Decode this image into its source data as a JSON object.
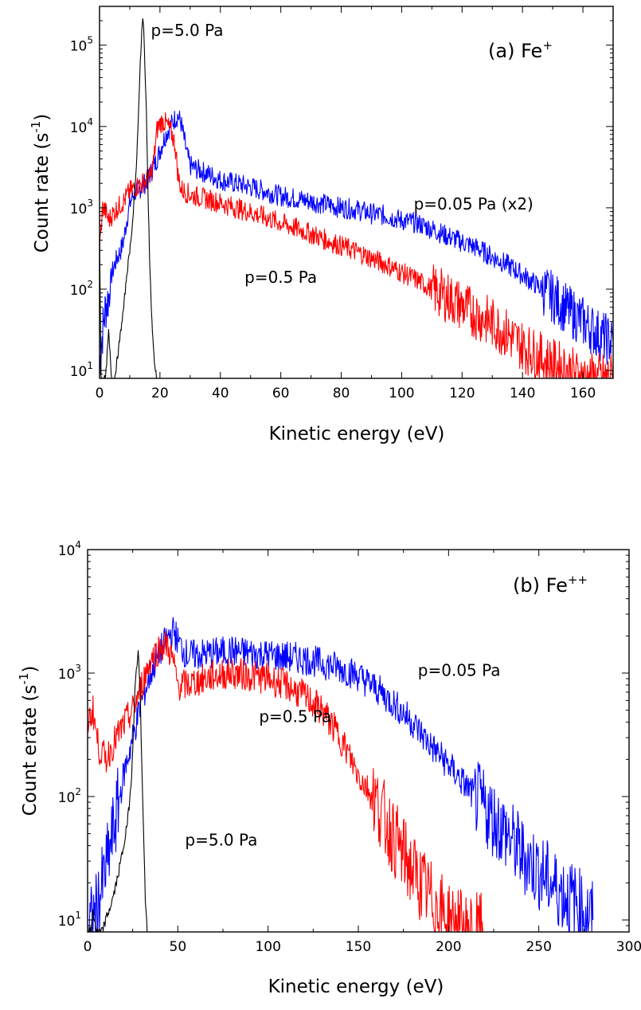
{
  "chart_data": [
    {
      "type": "line",
      "panel_label": "(a) Fe",
      "panel_label_sup": "+",
      "xlabel": "Kinetic energy (eV)",
      "ylabel": "Count rate (s",
      "ylabel_sup": "-1",
      "ylabel_end": ")",
      "log_y": true,
      "xlim": [
        0,
        170
      ],
      "ylim": [
        8,
        300000
      ],
      "xticks": [
        0,
        20,
        40,
        60,
        80,
        100,
        120,
        140,
        160
      ],
      "yticks": [
        {
          "value": 10,
          "base": "10",
          "exp": "1"
        },
        {
          "value": 100,
          "base": "10",
          "exp": "2"
        },
        {
          "value": 1000,
          "base": "10",
          "exp": "3"
        },
        {
          "value": 10000,
          "base": "10",
          "exp": "4"
        },
        {
          "value": 100000,
          "base": "10",
          "exp": "5"
        }
      ],
      "annotations": [
        {
          "text": "p=5.0 Pa",
          "x": 17,
          "y": 130000
        },
        {
          "text": "p=0.05 Pa (x2)",
          "x": 104,
          "y": 950
        },
        {
          "text": "p=0.5 Pa",
          "x": 48,
          "y": 120
        }
      ],
      "series": [
        {
          "color": "#0000ff",
          "x": [
            0,
            1,
            2,
            3,
            4,
            5,
            6,
            7,
            8,
            9,
            10,
            11,
            12,
            13,
            14,
            15,
            16,
            17,
            18,
            19,
            20,
            21,
            22,
            23,
            24,
            25,
            26,
            27,
            28,
            29,
            30,
            32,
            34,
            36,
            38,
            40,
            45,
            50,
            55,
            60,
            65,
            70,
            75,
            80,
            85,
            90,
            95,
            100,
            105,
            110,
            115,
            120,
            125,
            130,
            135,
            140,
            145,
            150,
            155,
            160,
            165,
            170
          ],
          "y": [
            12,
            30,
            60,
            80,
            150,
            200,
            250,
            300,
            400,
            700,
            1100,
            1400,
            1600,
            1700,
            1800,
            2000,
            2300,
            2700,
            3200,
            4000,
            5000,
            6500,
            8000,
            9500,
            11000,
            12500,
            13500,
            11000,
            7000,
            4500,
            3300,
            3000,
            2800,
            2600,
            2400,
            2200,
            2000,
            1800,
            1600,
            1400,
            1300,
            1200,
            1100,
            1000,
            950,
            850,
            800,
            700,
            650,
            550,
            450,
            380,
            320,
            250,
            200,
            150,
            110,
            80,
            55,
            40,
            28,
            22
          ]
        },
        {
          "color": "#ff0000",
          "x": [
            0,
            1,
            2,
            3,
            4,
            5,
            6,
            7,
            8,
            9,
            10,
            11,
            12,
            13,
            14,
            15,
            16,
            17,
            18,
            19,
            20,
            21,
            22,
            23,
            24,
            25,
            26,
            27,
            28,
            30,
            35,
            40,
            45,
            50,
            55,
            60,
            65,
            70,
            75,
            80,
            85,
            90,
            95,
            100,
            105,
            110,
            115,
            120,
            125,
            130,
            135,
            140,
            145,
            150,
            155,
            160,
            165,
            170
          ],
          "y": [
            300,
            1000,
            900,
            700,
            800,
            900,
            1000,
            1100,
            1200,
            1400,
            1600,
            1700,
            1800,
            1900,
            2000,
            2100,
            2200,
            2500,
            4000,
            9000,
            11000,
            11500,
            11000,
            9500,
            8000,
            6000,
            2500,
            1700,
            1600,
            1450,
            1300,
            1150,
            1000,
            880,
            760,
            650,
            560,
            480,
            400,
            340,
            290,
            240,
            200,
            160,
            130,
            100,
            80,
            62,
            48,
            38,
            28,
            20,
            15,
            12,
            10,
            8,
            8,
            8
          ]
        },
        {
          "color": "#000000",
          "x": [
            0,
            0.5,
            1,
            2,
            3,
            4,
            5,
            6,
            7,
            8,
            9,
            10,
            11,
            12,
            12.5,
            13,
            13.5,
            14,
            14.3,
            14.6,
            15,
            15.5,
            16,
            16.5,
            17,
            17.5,
            18,
            18.5,
            19
          ],
          "y": [
            500,
            8,
            8,
            8,
            30,
            8,
            8,
            15,
            30,
            60,
            150,
            300,
            700,
            2500,
            6000,
            20000,
            60000,
            150000,
            210000,
            160000,
            60000,
            15000,
            2000,
            300,
            80,
            30,
            15,
            10,
            8
          ]
        }
      ]
    },
    {
      "type": "line",
      "panel_label": "(b) Fe",
      "panel_label_sup": "++",
      "xlabel": "Kinetic energy (eV)",
      "ylabel": "Count erate (s",
      "ylabel_sup": "-1",
      "ylabel_end": ")",
      "log_y": true,
      "xlim": [
        0,
        300
      ],
      "ylim": [
        8,
        10000
      ],
      "xticks": [
        0,
        50,
        100,
        150,
        200,
        250,
        300
      ],
      "yticks": [
        {
          "value": 10,
          "base": "10",
          "exp": "1"
        },
        {
          "value": 100,
          "base": "10",
          "exp": "2"
        },
        {
          "value": 1000,
          "base": "10",
          "exp": "3"
        },
        {
          "value": 10000,
          "base": "10",
          "exp": "4"
        }
      ],
      "annotations": [
        {
          "text": "p=0.05 Pa",
          "x": 183,
          "y": 950
        },
        {
          "text": "p=0.5 Pa",
          "x": 95,
          "y": 400
        },
        {
          "text": "p=5.0 Pa",
          "x": 54,
          "y": 40
        }
      ],
      "series": [
        {
          "color": "#0000ff",
          "x": [
            0,
            5,
            10,
            15,
            20,
            25,
            30,
            35,
            40,
            45,
            48,
            50,
            55,
            60,
            70,
            80,
            90,
            100,
            110,
            120,
            130,
            140,
            150,
            160,
            170,
            180,
            190,
            200,
            210,
            220,
            230,
            240,
            250,
            260,
            270,
            280
          ],
          "y": [
            8,
            12,
            25,
            60,
            150,
            300,
            600,
            1000,
            1500,
            2000,
            2200,
            1800,
            1400,
            1400,
            1450,
            1500,
            1450,
            1400,
            1350,
            1300,
            1200,
            1100,
            950,
            750,
            560,
            400,
            260,
            180,
            120,
            80,
            55,
            35,
            25,
            18,
            14,
            10
          ]
        },
        {
          "color": "#ff0000",
          "x": [
            0,
            3,
            6,
            10,
            15,
            20,
            25,
            30,
            35,
            40,
            44,
            47,
            50,
            55,
            60,
            70,
            80,
            90,
            100,
            110,
            120,
            130,
            140,
            150,
            160,
            170,
            180,
            190,
            200,
            210,
            220
          ],
          "y": [
            400,
            500,
            250,
            200,
            280,
            380,
            500,
            800,
            1300,
            1600,
            1700,
            1300,
            800,
            800,
            850,
            950,
            1000,
            950,
            900,
            800,
            650,
            500,
            300,
            150,
            90,
            45,
            25,
            15,
            10,
            8,
            8
          ]
        },
        {
          "color": "#000000",
          "x": [
            0,
            2,
            3,
            5,
            8,
            10,
            12,
            14,
            16,
            18,
            20,
            22,
            24,
            25,
            26,
            27,
            28,
            29,
            30,
            31,
            32,
            33
          ],
          "y": [
            8,
            8,
            12,
            8,
            8,
            10,
            12,
            15,
            20,
            28,
            40,
            60,
            120,
            250,
            600,
            1100,
            1500,
            800,
            200,
            50,
            15,
            8
          ]
        }
      ]
    }
  ]
}
